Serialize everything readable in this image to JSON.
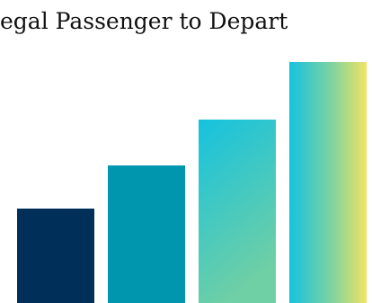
{
  "page": {
    "title": "egal Passenger to Depart"
  },
  "graphic": {
    "name": "ascending-bars-graphic",
    "bars": [
      {
        "name": "bar-1",
        "relative_height": 0.39,
        "fill": "#00305a"
      },
      {
        "name": "bar-2",
        "relative_height": 0.57,
        "fill": "#0096ad"
      },
      {
        "name": "bar-3",
        "relative_height": 0.76,
        "fill": "gradient-teal"
      },
      {
        "name": "bar-4",
        "relative_height": 1.0,
        "fill": "gradient-teal-yellow"
      }
    ],
    "colors": {
      "navy": "#00305a",
      "teal": "#0096ad",
      "cyan": "#15c2df",
      "mint": "#6fcfa5",
      "yellow": "#f1e462"
    }
  }
}
